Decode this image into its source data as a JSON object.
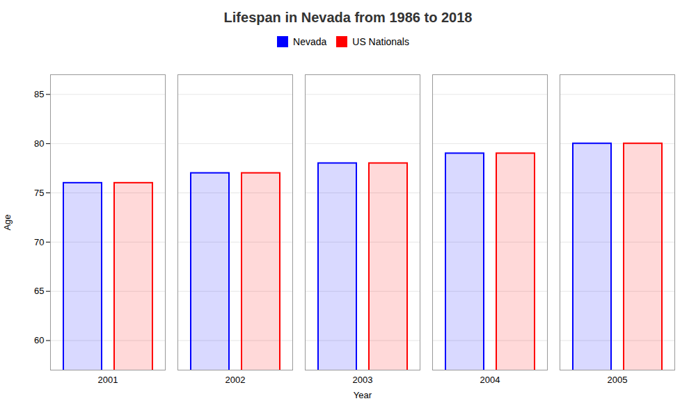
{
  "chart_data": {
    "type": "bar",
    "title": "Lifespan in Nevada from 1986 to 2018",
    "xlabel": "Year",
    "ylabel": "Age",
    "categories": [
      "2001",
      "2002",
      "2003",
      "2004",
      "2005"
    ],
    "series": [
      {
        "name": "Nevada",
        "color": "#0000ff",
        "values": [
          76,
          77,
          78,
          79,
          80
        ]
      },
      {
        "name": "US Nationals",
        "color": "#ff0000",
        "values": [
          76,
          77,
          78,
          79,
          80
        ]
      }
    ],
    "ylim": [
      57,
      87
    ],
    "yticks": [
      60,
      65,
      70,
      75,
      80,
      85
    ],
    "grid": true,
    "legend": "top"
  }
}
